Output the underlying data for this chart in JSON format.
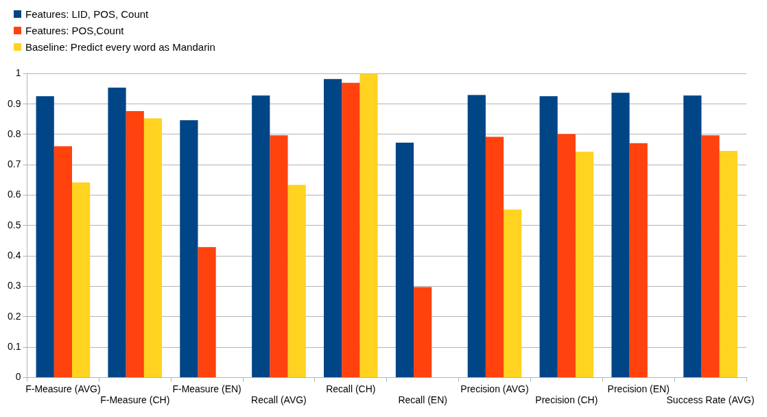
{
  "chart_data": {
    "type": "bar",
    "categories": [
      "F-Measure (AVG)",
      "F-Measure (CH)",
      "F-Measure (EN)",
      "Recall (AVG)",
      "Recall (CH)",
      "Recall (EN)",
      "Precision (AVG)",
      "Precision (CH)",
      "Precision (EN)",
      "Success Rate (AVG)"
    ],
    "series": [
      {
        "name": "Features: LID, POS, Count",
        "color": "#004586",
        "values": [
          0.926,
          0.954,
          0.847,
          0.928,
          0.982,
          0.773,
          0.93,
          0.926,
          0.937,
          0.928
        ]
      },
      {
        "name": "Features: POS,Count",
        "color": "#ff420e",
        "values": [
          0.761,
          0.877,
          0.429,
          0.797,
          0.97,
          0.298,
          0.792,
          0.801,
          0.771,
          0.797
        ]
      },
      {
        "name": "Baseline: Predict every word as Mandarin",
        "color": "#ffd320",
        "values": [
          0.642,
          0.853,
          null,
          0.634,
          1,
          null,
          0.553,
          0.743,
          null,
          0.746
        ]
      }
    ],
    "ylim": [
      0,
      1
    ],
    "yticks": [
      0,
      0.1,
      0.2,
      0.3,
      0.4,
      0.5,
      0.6,
      0.7,
      0.8,
      0.9,
      1
    ],
    "grid": "y",
    "legend": "top left"
  }
}
